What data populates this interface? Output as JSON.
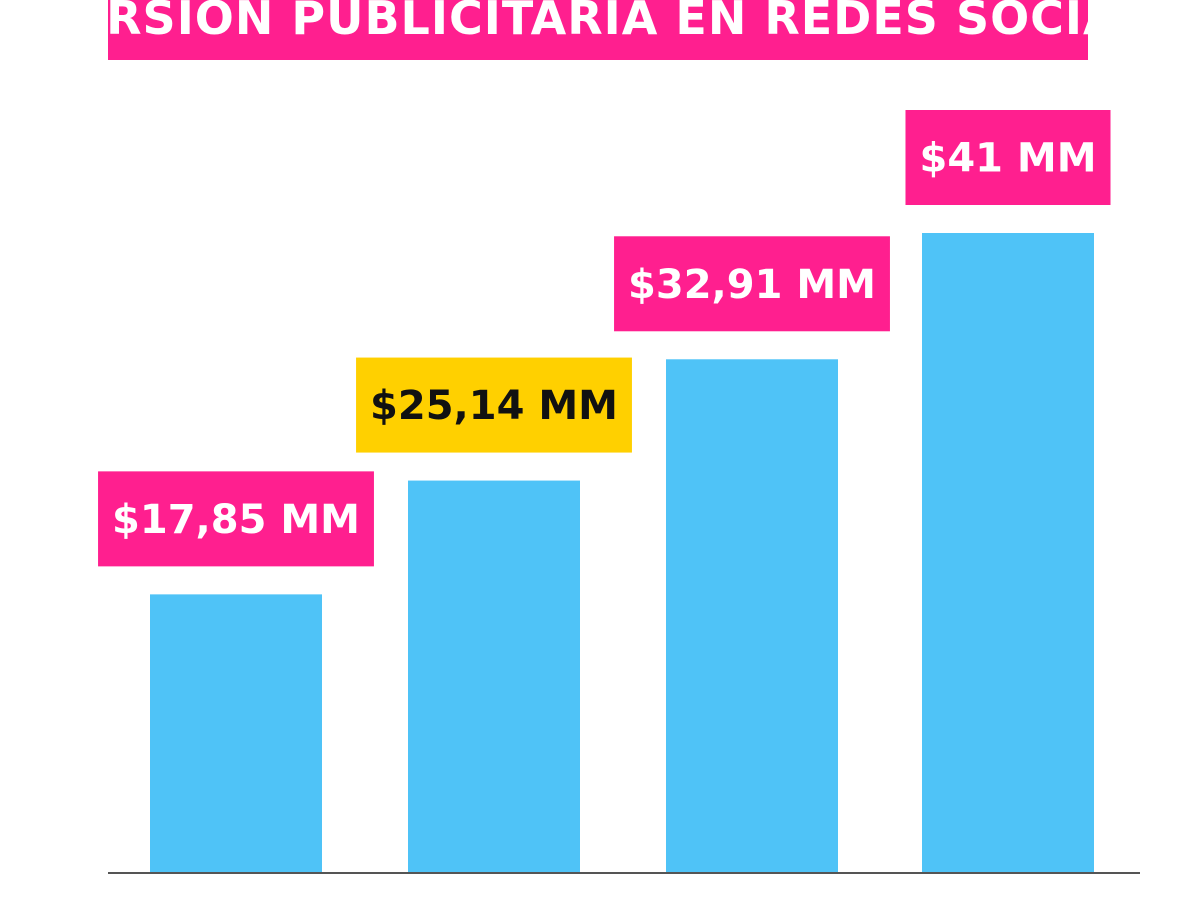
{
  "title": "INVERSIÓN PUBLICITARIA EN REDES SOCIALES",
  "colors": {
    "title_banner": "#ff1f8f",
    "title_text": "#ffffff",
    "bar": "#4fc3f7",
    "label_highlight": "#ffd000",
    "label_text_default": "#ffffff",
    "label_text_highlight": "#111111"
  },
  "chart_data": {
    "type": "bar",
    "title": "INVERSIÓN PUBLICITARIA EN REDES SOCIALES",
    "categories": [
      "",
      "",
      "",
      ""
    ],
    "values": [
      17.85,
      25.14,
      32.91,
      41
    ],
    "data_labels": [
      "$17,85 MM",
      "$25,14 MM",
      "$32,91 MM",
      "$41 MM"
    ],
    "highlighted_index": 1,
    "ylim": [
      0,
      41
    ],
    "grid": false,
    "xlabel": "",
    "ylabel": ""
  }
}
